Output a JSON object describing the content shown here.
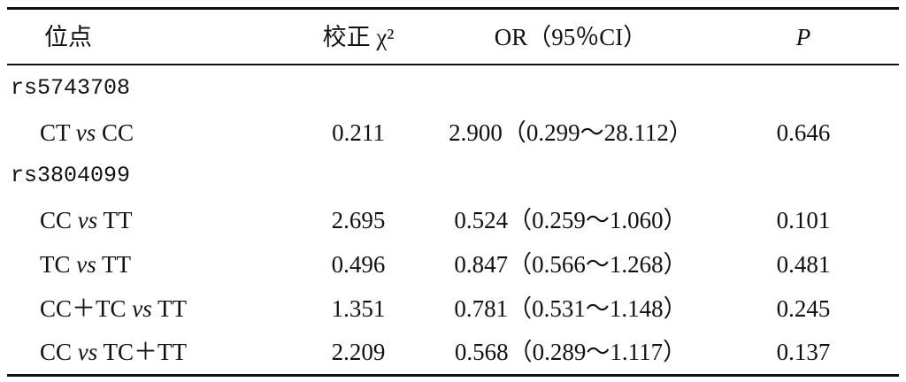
{
  "table": {
    "header": [
      "位点",
      "校正 χ²",
      "OR（95％CI）",
      "P"
    ],
    "groups": [
      {
        "label": "rs5743708",
        "rows": [
          {
            "site": {
              "left": "CT",
              "op": "vs",
              "right": "CC"
            },
            "cells": [
              "0.211",
              "2.900（0.299～28.112）",
              "0.646"
            ]
          }
        ]
      },
      {
        "label": "rs3804099",
        "rows": [
          {
            "site": {
              "left": "CC",
              "op": "vs",
              "right": "TT"
            },
            "cells": [
              "2.695",
              "0.524（0.259～1.060）",
              "0.101"
            ]
          },
          {
            "site": {
              "left": "TC",
              "op": "vs",
              "right": "TT"
            },
            "cells": [
              "0.496",
              "0.847（0.566～1.268）",
              "0.481"
            ]
          },
          {
            "site": {
              "left": "CC＋TC",
              "op": "vs",
              "right": "TT"
            },
            "cells": [
              "1.351",
              "0.781（0.531～1.148）",
              "0.245"
            ]
          },
          {
            "site": {
              "left": "CC",
              "op": "vs",
              "right": "TC＋TT"
            },
            "cells": [
              "2.209",
              "0.568（0.289～1.117）",
              "0.137"
            ]
          }
        ]
      }
    ]
  }
}
